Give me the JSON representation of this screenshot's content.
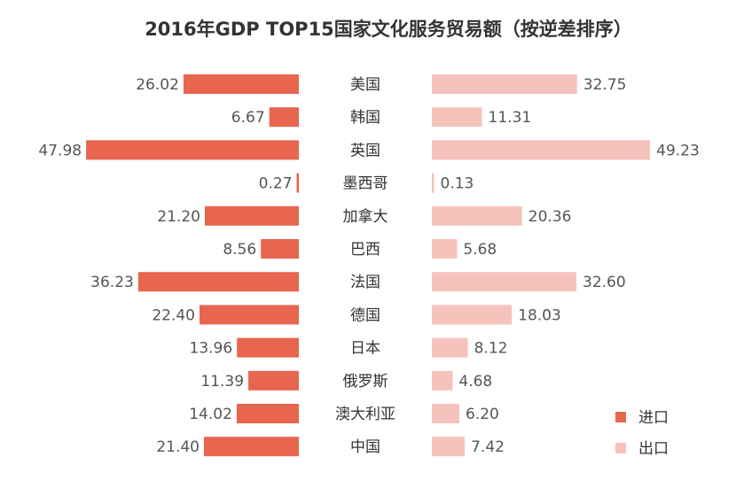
{
  "chart_data": {
    "type": "bar",
    "title": "2016年GDP TOP15国家文化服务贸易额（按逆差排序）",
    "categories": [
      "美国",
      "韩国",
      "英国",
      "墨西哥",
      "加拿大",
      "巴西",
      "法国",
      "德国",
      "日本",
      "俄罗斯",
      "澳大利亚",
      "中国"
    ],
    "series": [
      {
        "name": "进口",
        "color": "#E8654F",
        "values": [
          26.02,
          6.67,
          47.98,
          0.27,
          21.2,
          8.56,
          36.23,
          22.4,
          13.96,
          11.39,
          14.02,
          21.4
        ]
      },
      {
        "name": "出口",
        "color": "#F6C3BC",
        "values": [
          32.75,
          11.31,
          49.23,
          0.13,
          20.36,
          5.68,
          32.6,
          18.03,
          8.12,
          4.68,
          6.2,
          7.42
        ]
      }
    ],
    "legend_position": "bottom-right"
  }
}
